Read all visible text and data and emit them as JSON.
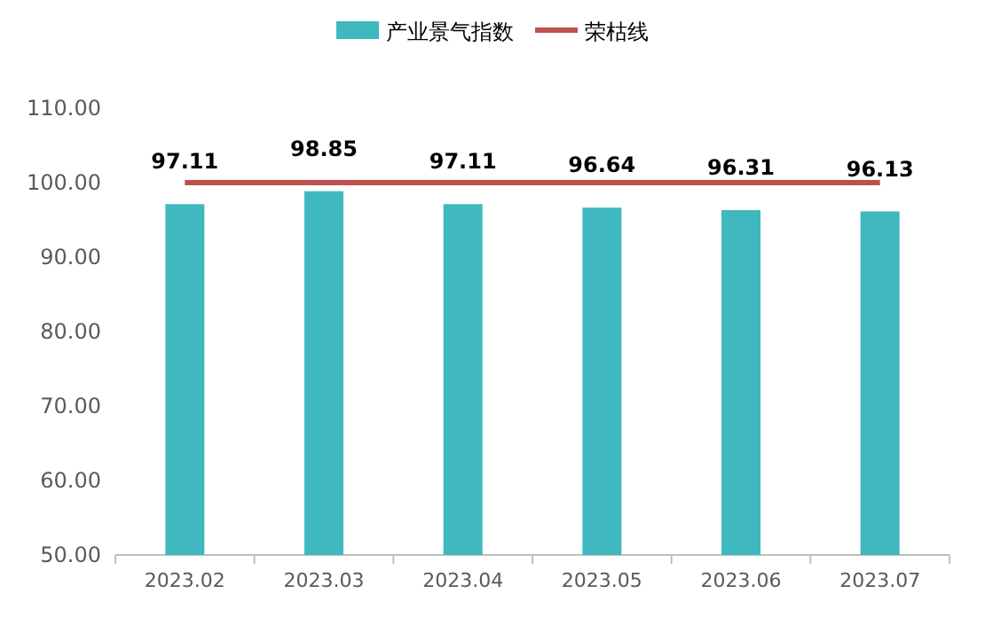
{
  "chart_data": {
    "type": "bar",
    "categories": [
      "2023.02",
      "2023.03",
      "2023.04",
      "2023.05",
      "2023.06",
      "2023.07"
    ],
    "series": [
      {
        "name": "产业景气指数",
        "color": "#3fb8c0",
        "values": [
          97.11,
          98.85,
          97.11,
          96.64,
          96.31,
          96.13
        ],
        "value_labels": [
          "97.11",
          "98.85",
          "97.11",
          "96.64",
          "96.31",
          "96.13"
        ]
      },
      {
        "name": "荣枯线",
        "type": "line",
        "color": "#c0504d",
        "values": [
          100,
          100,
          100,
          100,
          100,
          100
        ]
      }
    ],
    "ylim": [
      50,
      110
    ],
    "yticks": [
      {
        "value": 50,
        "label": "50.00"
      },
      {
        "value": 60,
        "label": "60.00"
      },
      {
        "value": 70,
        "label": "70.00"
      },
      {
        "value": 80,
        "label": "80.00"
      },
      {
        "value": 90,
        "label": "90.00"
      },
      {
        "value": 100,
        "label": "100.00"
      },
      {
        "value": 110,
        "label": "110.00"
      }
    ],
    "legend": "top",
    "grid": false
  }
}
